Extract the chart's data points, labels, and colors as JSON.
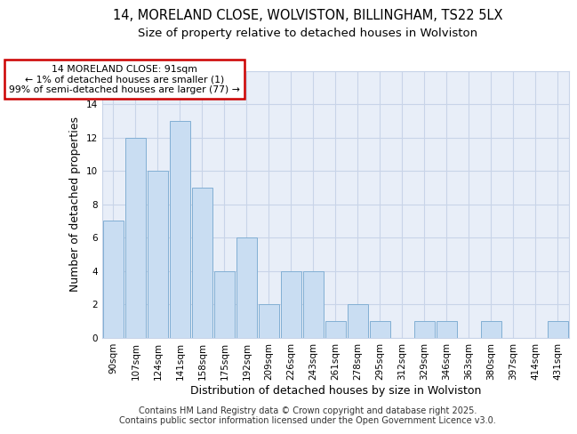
{
  "title1": "14, MORELAND CLOSE, WOLVISTON, BILLINGHAM, TS22 5LX",
  "title2": "Size of property relative to detached houses in Wolviston",
  "xlabel": "Distribution of detached houses by size in Wolviston",
  "ylabel": "Number of detached properties",
  "categories": [
    "90sqm",
    "107sqm",
    "124sqm",
    "141sqm",
    "158sqm",
    "175sqm",
    "192sqm",
    "209sqm",
    "226sqm",
    "243sqm",
    "261sqm",
    "278sqm",
    "295sqm",
    "312sqm",
    "329sqm",
    "346sqm",
    "363sqm",
    "380sqm",
    "397sqm",
    "414sqm",
    "431sqm"
  ],
  "values": [
    7,
    12,
    10,
    13,
    9,
    4,
    6,
    2,
    4,
    4,
    1,
    2,
    1,
    0,
    1,
    1,
    0,
    1,
    0,
    0,
    1
  ],
  "bar_color": "#c9ddf2",
  "bar_edge_color": "#82afd4",
  "annotation_box_color": "#ffffff",
  "annotation_border_color": "#cc0000",
  "annotation_text": "14 MORELAND CLOSE: 91sqm\n← 1% of detached houses are smaller (1)\n99% of semi-detached houses are larger (77) →",
  "ylim": [
    0,
    16
  ],
  "yticks": [
    0,
    2,
    4,
    6,
    8,
    10,
    12,
    14,
    16
  ],
  "grid_color": "#c8d4e8",
  "bg_color": "#e8eef8",
  "footer": "Contains HM Land Registry data © Crown copyright and database right 2025.\nContains public sector information licensed under the Open Government Licence v3.0.",
  "title_fontsize": 10.5,
  "subtitle_fontsize": 9.5,
  "annotation_fontsize": 7.8,
  "tick_fontsize": 7.5,
  "label_fontsize": 9
}
